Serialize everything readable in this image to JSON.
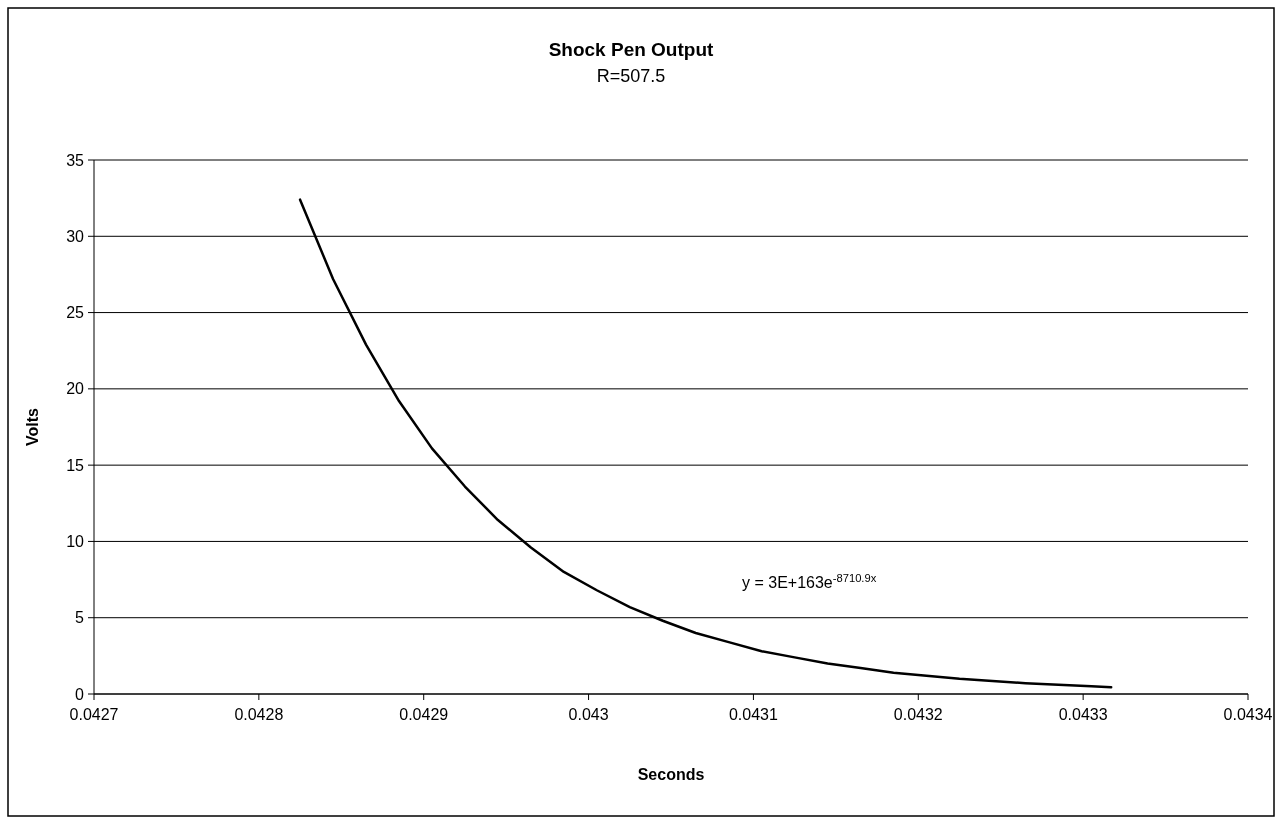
{
  "chart_data": {
    "type": "line",
    "title": "Shock Pen Output",
    "subtitle": "R=507.5",
    "xlabel": "Seconds",
    "ylabel": "Volts",
    "x": [
      0.042825,
      0.042845,
      0.042865,
      0.042885,
      0.042905,
      0.042925,
      0.042945,
      0.042965,
      0.042985,
      0.043005,
      0.043025,
      0.043045,
      0.043065,
      0.043085,
      0.043105,
      0.043125,
      0.043145,
      0.043165,
      0.043185,
      0.043205,
      0.043225,
      0.043245,
      0.043265,
      0.043285,
      0.043305,
      0.043317
    ],
    "series": [
      {
        "color": "#000000",
        "values": [
          32.4,
          27.2,
          22.9,
          19.2,
          16.1,
          13.6,
          11.4,
          9.6,
          8.0,
          6.8,
          5.7,
          4.8,
          4.0,
          3.4,
          2.8,
          2.4,
          2.0,
          1.7,
          1.4,
          1.2,
          1.0,
          0.85,
          0.71,
          0.6,
          0.5,
          0.45
        ]
      }
    ],
    "xlim": [
      0.0427,
      0.0434
    ],
    "xticks": [
      0.0427,
      0.0428,
      0.0429,
      0.043,
      0.0431,
      0.0432,
      0.0433,
      0.0434
    ],
    "ylim": [
      0,
      35
    ],
    "yticks": [
      0,
      5,
      10,
      15,
      20,
      25,
      30,
      35
    ],
    "grid": "y",
    "marker": "none",
    "line_style": "solid",
    "annotations": [
      "y = 3E+163e$^{-8710.9x}$"
    ]
  }
}
